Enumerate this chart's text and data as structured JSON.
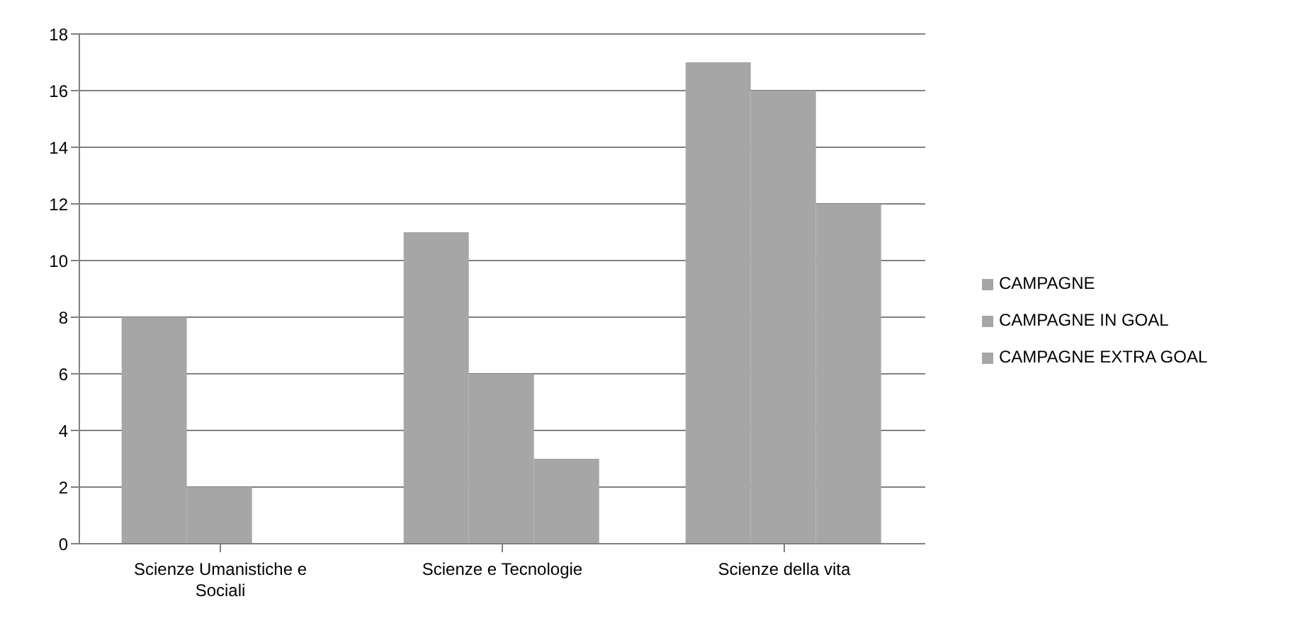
{
  "chart_data": {
    "type": "bar",
    "categories": [
      "Scienze Umanistiche e Sociali",
      "Scienze e Tecnologie",
      "Scienze della vita"
    ],
    "series": [
      {
        "name": "CAMPAGNE",
        "color": "#a6a6a6",
        "values": [
          8,
          11,
          17
        ]
      },
      {
        "name": "CAMPAGNE IN GOAL",
        "color": "#a6a6a6",
        "values": [
          2,
          6,
          16
        ]
      },
      {
        "name": "CAMPAGNE EXTRA GOAL",
        "color": "#a6a6a6",
        "values": [
          0,
          3,
          12
        ]
      }
    ],
    "ylim": [
      0,
      18
    ],
    "yticks": [
      0,
      2,
      4,
      6,
      8,
      10,
      12,
      14,
      16,
      18
    ],
    "grid": "y",
    "legend": "right"
  }
}
